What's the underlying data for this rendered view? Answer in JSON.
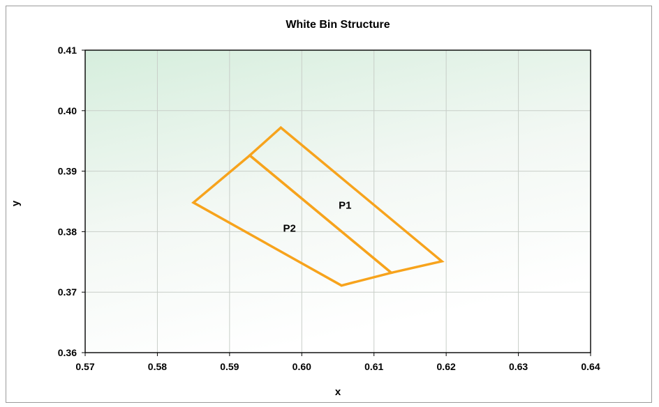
{
  "chart_data": {
    "type": "line",
    "title": "White Bin Structure",
    "xlabel": "x",
    "ylabel": "y",
    "xlim": [
      0.57,
      0.64
    ],
    "ylim": [
      0.36,
      0.41
    ],
    "x_ticks": [
      0.57,
      0.58,
      0.59,
      0.6,
      0.61,
      0.62,
      0.63,
      0.64
    ],
    "y_ticks": [
      0.36,
      0.37,
      0.38,
      0.39,
      0.4,
      0.41
    ],
    "x_tick_labels": [
      "0.57",
      "0.58",
      "0.59",
      "0.60",
      "0.61",
      "0.62",
      "0.63",
      "0.64"
    ],
    "y_tick_labels": [
      "0.36",
      "0.37",
      "0.38",
      "0.39",
      "0.40",
      "0.41"
    ],
    "grid": true,
    "line_color": "#f7a31c",
    "background_gradient": [
      "#d6eedd",
      "#f4f9f3",
      "#ffffff"
    ],
    "series": [
      {
        "name": "P1",
        "points": [
          [
            0.5971,
            0.3972
          ],
          [
            0.6194,
            0.3751
          ],
          [
            0.6124,
            0.3732
          ],
          [
            0.5928,
            0.3926
          ]
        ]
      },
      {
        "name": "P2",
        "points": [
          [
            0.5928,
            0.3926
          ],
          [
            0.6124,
            0.3732
          ],
          [
            0.6055,
            0.3711
          ],
          [
            0.585,
            0.3848
          ]
        ]
      }
    ],
    "labels": [
      {
        "text": "P1",
        "x": 0.606,
        "y": 0.3838
      },
      {
        "text": "P2",
        "x": 0.5983,
        "y": 0.38
      }
    ]
  }
}
